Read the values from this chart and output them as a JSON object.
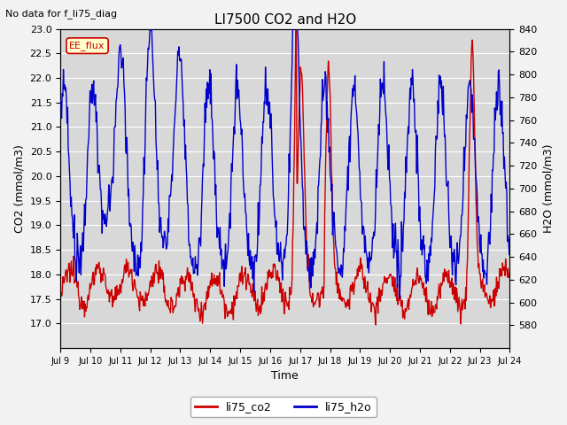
{
  "title": "LI7500 CO2 and H2O",
  "subtitle": "No data for f_li75_diag",
  "xlabel": "Time",
  "ylabel_left": "CO2 (mmol/m3)",
  "ylabel_right": "H2O (mmol/m3)",
  "ylim_left": [
    16.5,
    23.0
  ],
  "ylim_right": [
    560,
    840
  ],
  "yticks_left": [
    17.0,
    17.5,
    18.0,
    18.5,
    19.0,
    19.5,
    20.0,
    20.5,
    21.0,
    21.5,
    22.0,
    22.5,
    23.0
  ],
  "yticks_right": [
    580,
    600,
    620,
    640,
    660,
    680,
    700,
    720,
    740,
    760,
    780,
    800,
    820,
    840
  ],
  "xtick_labels": [
    "Jul 9",
    "Jul 10",
    "Jul 11",
    "Jul 12",
    "Jul 13",
    "Jul 14",
    "Jul 15",
    "Jul 16",
    "Jul 17",
    "Jul 18",
    "Jul 19",
    "Jul 20",
    "Jul 21",
    "Jul 22",
    "Jul 23",
    "Jul 24"
  ],
  "annotation": "EE_flux",
  "co2_color": "#cc0000",
  "h2o_color": "#0000cc",
  "bg_color": "#d8d8d8",
  "legend_labels": [
    "li75_co2",
    "li75_h2o"
  ],
  "grid_color": "#ffffff",
  "line_width": 1.0,
  "n_days": 15.5
}
